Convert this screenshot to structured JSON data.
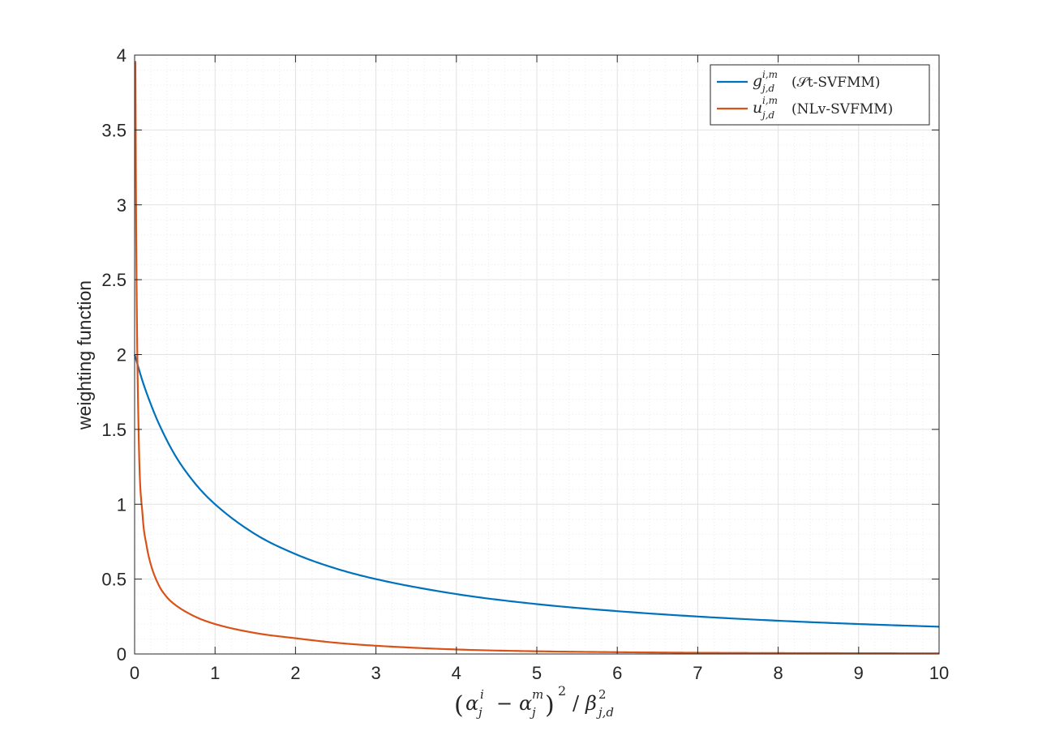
{
  "chart_data": {
    "type": "line",
    "xlim": [
      0,
      10
    ],
    "ylim": [
      0,
      4
    ],
    "x_ticks": [
      "0",
      "1",
      "2",
      "3",
      "4",
      "5",
      "6",
      "7",
      "8",
      "9",
      "10"
    ],
    "y_ticks": [
      "0",
      "0.5",
      "1",
      "1.5",
      "2",
      "2.5",
      "3",
      "3.5",
      "4"
    ],
    "grid": "major and minor",
    "legend_position": "top-right",
    "ylabel": "weighting function",
    "xlabel": "(α_j^i − α_j^m)^2 / β_{j,d}^2",
    "series": [
      {
        "name": "g_{j,d}^{i,m} (𝒮t-SVFMM)",
        "color": "#0072BD",
        "x": [
          0,
          0.1,
          0.2,
          0.3,
          0.5,
          0.75,
          1,
          1.5,
          2,
          2.5,
          3,
          4,
          5,
          6,
          7,
          8,
          9,
          10
        ],
        "y": [
          2.0,
          1.82,
          1.67,
          1.54,
          1.33,
          1.14,
          1.0,
          0.8,
          0.667,
          0.571,
          0.5,
          0.4,
          0.333,
          0.286,
          0.25,
          0.222,
          0.2,
          0.182
        ]
      },
      {
        "name": "u_{j,d}^{i,m} (NLv-SVFMM)",
        "color": "#D95319",
        "x": [
          0.01,
          0.02,
          0.05,
          0.1,
          0.15,
          0.2,
          0.3,
          0.4,
          0.5,
          0.75,
          1,
          1.5,
          2,
          2.5,
          3,
          4,
          5,
          6,
          7,
          8,
          9,
          10
        ],
        "y": [
          3.96,
          2.8,
          1.48,
          0.92,
          0.72,
          0.6,
          0.46,
          0.38,
          0.33,
          0.25,
          0.2,
          0.14,
          0.105,
          0.075,
          0.055,
          0.03,
          0.018,
          0.012,
          0.008,
          0.006,
          0.005,
          0.004
        ]
      }
    ]
  },
  "legend": {
    "g_sym": "g",
    "g_sup": "i,m",
    "g_sub": "j,d",
    "g_label": "(𝒮t-SVFMM)",
    "u_sym": "u",
    "u_sup": "i,m",
    "u_sub": "j,d",
    "u_label": "(NLv-SVFMM)"
  },
  "xlabel_parts": {
    "open": "(",
    "alpha1": "α",
    "sup1": "i",
    "sub1": "j",
    "minus": "−",
    "alpha2": "α",
    "sup2": "m",
    "sub2": "j",
    "close": ")",
    "pow": "2",
    "slash": "/",
    "beta": "β",
    "sup3": "2",
    "sub3": "j,d"
  },
  "colors": {
    "g_series": "#0072BD",
    "u_series": "#D95319",
    "grid": "#e2e2e2",
    "axis": "#262626"
  }
}
